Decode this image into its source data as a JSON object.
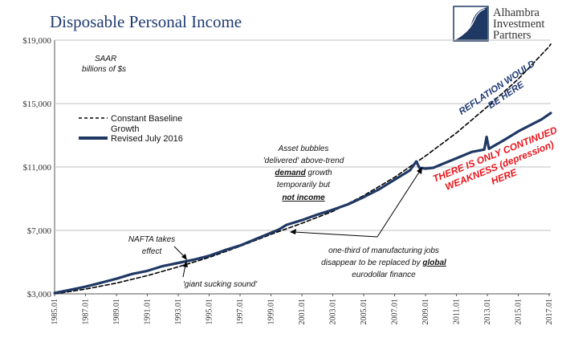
{
  "chart_data": {
    "type": "line",
    "title": "Disposable Personal Income",
    "subtitle": [
      "SAAR",
      "billions of $s"
    ],
    "xlabel": "",
    "ylabel": "",
    "x_range": [
      1985.0,
      2017.1
    ],
    "ylim": [
      3000,
      19000
    ],
    "yticks": [
      "$3,000",
      "$7,000",
      "$11,000",
      "$15,000",
      "$19,000"
    ],
    "ytick_values": [
      3000,
      7000,
      11000,
      15000,
      19000
    ],
    "xticks": [
      "1985.01",
      "1987.01",
      "1989.01",
      "1991.01",
      "1993.01",
      "1995.01",
      "1997.01",
      "1999.01",
      "2001.01",
      "2003.01",
      "2005.01",
      "2007.01",
      "2009.01",
      "2011.01",
      "2013.01",
      "2015.01",
      "2017.01"
    ],
    "xtick_values": [
      1985,
      1987,
      1989,
      1991,
      1993,
      1995,
      1997,
      1999,
      2001,
      2003,
      2005,
      2007,
      2009,
      2011,
      2013,
      2015,
      2017
    ],
    "grid": true,
    "legend_position": "left",
    "series": [
      {
        "name": "Constant Baseline Growth",
        "style": "dashed",
        "color": "#000000",
        "x": [
          1985.0,
          1987.0,
          1989.0,
          1991.0,
          1993.0,
          1995.0,
          1997.0,
          1999.0,
          2001.0,
          2003.0,
          2005.0,
          2007.0,
          2009.0,
          2011.0,
          2013.0,
          2015.0,
          2017.0,
          2017.1
        ],
        "values": [
          3000,
          3300,
          3680,
          4150,
          4700,
          5300,
          6000,
          6750,
          7450,
          8200,
          9200,
          10350,
          11700,
          13150,
          14800,
          16550,
          18600,
          18750
        ]
      },
      {
        "name": "Revised July 2016",
        "style": "solid",
        "color": "#1f3864",
        "x": [
          1985.0,
          1986.0,
          1987.0,
          1988.0,
          1989.0,
          1990.0,
          1991.0,
          1992.0,
          1993.0,
          1993.5,
          1994.0,
          1995.0,
          1996.0,
          1997.0,
          1998.0,
          1999.0,
          1999.5,
          2000.0,
          2001.0,
          2002.0,
          2003.0,
          2004.0,
          2005.0,
          2006.0,
          2007.0,
          2008.0,
          2008.4,
          2008.6,
          2009.0,
          2009.5,
          2010.0,
          2011.0,
          2012.0,
          2012.8,
          2012.95,
          2013.1,
          2014.0,
          2015.0,
          2016.0,
          2016.5,
          2017.1
        ],
        "values": [
          3050,
          3250,
          3450,
          3700,
          3950,
          4250,
          4450,
          4750,
          4950,
          5050,
          5150,
          5400,
          5750,
          6050,
          6450,
          6850,
          7050,
          7350,
          7650,
          8000,
          8300,
          8650,
          9100,
          9600,
          10200,
          10800,
          11350,
          10950,
          10900,
          10950,
          11150,
          11550,
          11950,
          12100,
          12900,
          12150,
          12650,
          13250,
          13750,
          14000,
          14400
        ]
      }
    ]
  },
  "logo": {
    "line1": "Alhambra",
    "line2": "Investment",
    "line3": "Partners"
  },
  "annotations": {
    "reflation_1": "REFLATION WOULD",
    "reflation_2": "BE HERE",
    "weakness_1": "THERE IS ONLY CONTINUED",
    "weakness_2": "WEAKNESS (depression)",
    "weakness_3": "HERE",
    "asset_1": "Asset bubbles",
    "asset_2": "'delivered' above-trend",
    "asset_3_bold": "demand",
    "asset_3_rest": " growth",
    "asset_4": "temporarily but",
    "asset_5": "not income",
    "mfg_1": "one-third of manufacturing jobs",
    "mfg_2_a": "disappear to be replaced by ",
    "mfg_2_b": "global",
    "mfg_3": "eurodollar finance",
    "nafta_1": "NAFTA takes",
    "nafta_2": "effect",
    "giant": "'giant sucking sound'"
  },
  "colors": {
    "series_blue": "#1f3864",
    "title_blue": "#1f3b73",
    "annotation_red": "#e8141b",
    "grid": "#bfbfbf"
  }
}
